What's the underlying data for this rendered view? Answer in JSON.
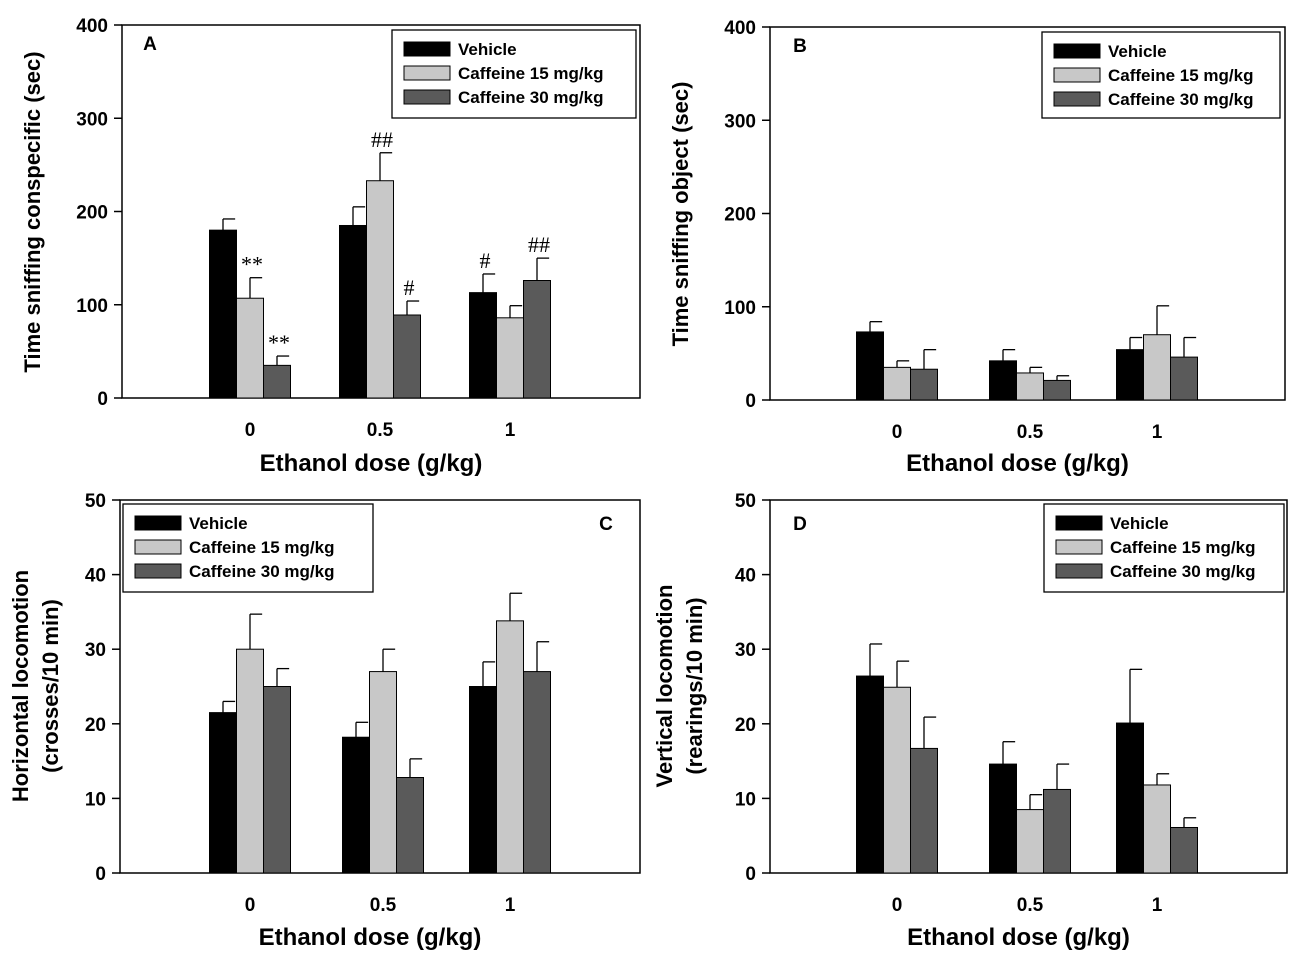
{
  "colors": {
    "vehicle": "#000000",
    "caffeine15": "#c8c8c8",
    "caffeine30": "#5a5a5a",
    "axis": "#000000"
  },
  "chart_data": [
    {
      "id": "A",
      "type": "bar",
      "panel_label": "A",
      "title": "",
      "xlabel": "Ethanol  dose (g/kg)",
      "ylabel": "Time sniffing conspecific (sec)",
      "ylim": [
        0,
        400
      ],
      "yticks": [
        0,
        100,
        200,
        300,
        400
      ],
      "categories": [
        "0",
        "0.5",
        "1"
      ],
      "series": [
        {
          "name": "Vehicle",
          "values": [
            180,
            185,
            113
          ],
          "errors": [
            12,
            20,
            20
          ]
        },
        {
          "name": "Caffeine 15 mg/kg",
          "values": [
            107,
            233,
            86
          ],
          "errors": [
            22,
            30,
            13
          ]
        },
        {
          "name": "Caffeine 30 mg/kg",
          "values": [
            35,
            89,
            126
          ],
          "errors": [
            10,
            15,
            24
          ]
        }
      ],
      "annotations": [
        {
          "text": "**",
          "series": 1,
          "category": 0
        },
        {
          "text": "**",
          "series": 2,
          "category": 0
        },
        {
          "text": "##",
          "series": 1,
          "category": 1
        },
        {
          "text": "#",
          "series": 2,
          "category": 1
        },
        {
          "text": "#",
          "series": 0,
          "category": 2
        },
        {
          "text": "##",
          "series": 2,
          "category": 2
        }
      ],
      "legend_position": "top-right"
    },
    {
      "id": "B",
      "type": "bar",
      "panel_label": "B",
      "title": "",
      "xlabel": "Ethanol  dose (g/kg)",
      "ylabel": "Time sniffing object (sec)",
      "ylim": [
        0,
        400
      ],
      "yticks": [
        0,
        100,
        200,
        300,
        400
      ],
      "categories": [
        "0",
        "0.5",
        "1"
      ],
      "series": [
        {
          "name": "Vehicle",
          "values": [
            73,
            42,
            54
          ],
          "errors": [
            11,
            12,
            13
          ]
        },
        {
          "name": "Caffeine 15 mg/kg",
          "values": [
            35,
            29,
            70
          ],
          "errors": [
            7,
            6,
            31
          ]
        },
        {
          "name": "Caffeine 30 mg/kg",
          "values": [
            33,
            21,
            46
          ],
          "errors": [
            21,
            5,
            21
          ]
        }
      ],
      "annotations": [],
      "legend_position": "top-right"
    },
    {
      "id": "C",
      "type": "bar",
      "panel_label": "C",
      "title": "",
      "xlabel": "Ethanol  dose (g/kg)",
      "ylabel": "Horizontal locomotion (crosses/10 min)",
      "ylabel_lines": [
        "Horizontal locomotion",
        "(crosses/10 min)"
      ],
      "ylim": [
        0,
        50
      ],
      "yticks": [
        0,
        10,
        20,
        30,
        40,
        50
      ],
      "categories": [
        "0",
        "0.5",
        "1"
      ],
      "series": [
        {
          "name": "Vehicle",
          "values": [
            21.5,
            18.2,
            25.0
          ],
          "errors": [
            1.5,
            2.0,
            3.3
          ]
        },
        {
          "name": "Caffeine 15 mg/kg",
          "values": [
            30.0,
            27.0,
            33.8
          ],
          "errors": [
            4.7,
            3.0,
            3.7
          ]
        },
        {
          "name": "Caffeine 30 mg/kg",
          "values": [
            25.0,
            12.8,
            27.0
          ],
          "errors": [
            2.4,
            2.5,
            4.0
          ]
        }
      ],
      "annotations": [],
      "legend_position": "top-left"
    },
    {
      "id": "D",
      "type": "bar",
      "panel_label": "D",
      "title": "",
      "xlabel": "Ethanol  dose (g/kg)",
      "ylabel": "Vertical locomotion (rearings/10 min)",
      "ylabel_lines": [
        "Vertical locomotion",
        "(rearings/10 min)"
      ],
      "ylim": [
        0,
        50
      ],
      "yticks": [
        0,
        10,
        20,
        30,
        40,
        50
      ],
      "categories": [
        "0",
        "0.5",
        "1"
      ],
      "series": [
        {
          "name": "Vehicle",
          "values": [
            26.4,
            14.6,
            20.1
          ],
          "errors": [
            4.3,
            3.0,
            7.2
          ]
        },
        {
          "name": "Caffeine 15 mg/kg",
          "values": [
            24.9,
            8.5,
            11.8
          ],
          "errors": [
            3.5,
            2.0,
            1.5
          ]
        },
        {
          "name": "Caffeine 30 mg/kg",
          "values": [
            16.7,
            11.2,
            6.1
          ],
          "errors": [
            4.2,
            3.4,
            1.3
          ]
        }
      ],
      "annotations": [],
      "legend_position": "top-right"
    }
  ]
}
